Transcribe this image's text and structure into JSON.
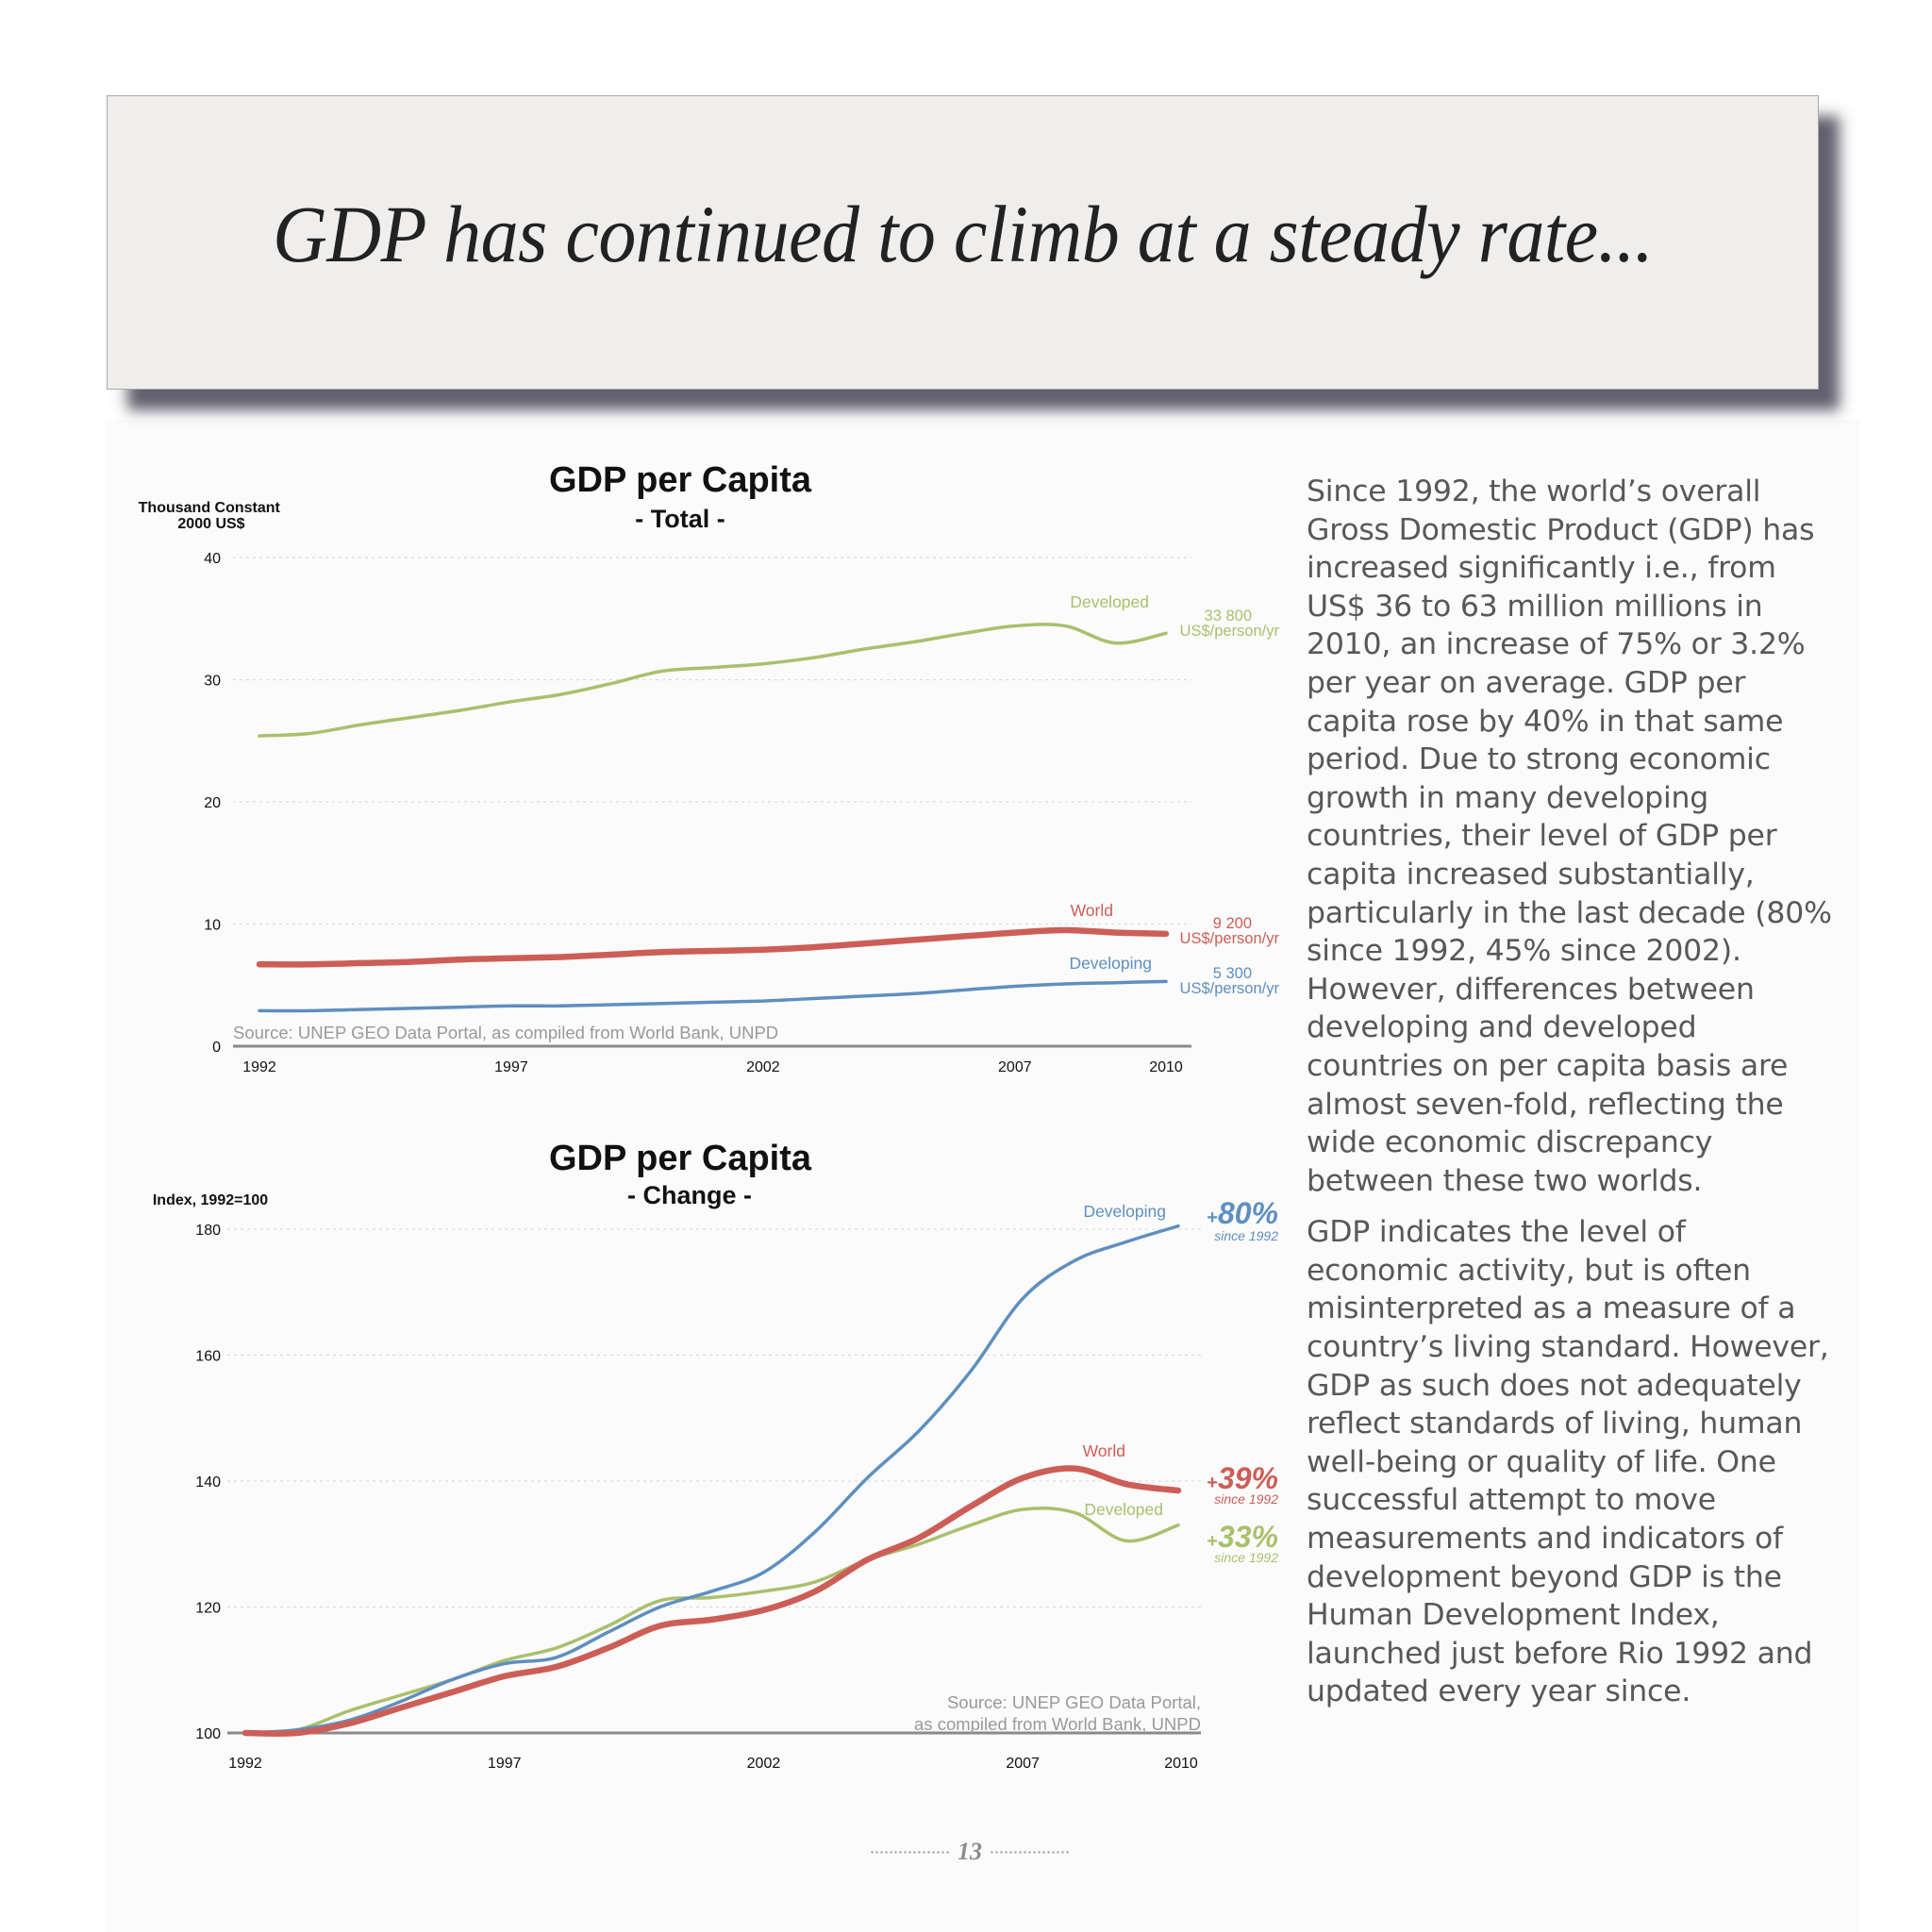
{
  "page_title": "GDP has continued to climb at a steady rate...",
  "page_number": "13",
  "body_paragraphs": [
    "Since 1992, the world’s overall Gross Domestic Product (GDP) has increased signiﬁcantly i.e., from US$ 36 to 63 million millions in 2010, an increase of 75% or 3.2% per year on average. GDP per capita rose by 40% in that same period. Due to strong economic growth in many developing countries, their level of GDP per capita increased substantially, particularly in the last decade (80% since 1992, 45% since 2002). However, differences between developing and developed countries on per capita basis are almost seven-fold, reﬂecting the wide economic discrepancy between these two worlds.",
    "GDP indicates the level of economic activity, but is often misinterpreted as a measure of a country’s living standard. However, GDP as such does not adequately reﬂect standards of living, human well-being or quality of life. One successful attempt to move measurements and indicators of development beyond GDP is the Human Development Index, launched just before Rio 1992 and updated every year since."
  ],
  "colors": {
    "developed": "#a9c06c",
    "world": "#cc5e57",
    "developing": "#5e8fbf",
    "axis": "#8a8a8a",
    "grid": "#dcdcdc",
    "source": "#999999"
  },
  "chart_data": [
    {
      "type": "line",
      "title": "GDP per Capita",
      "subtitle": "- Total -",
      "ylabel": "Thousand Constant 2000 US$",
      "ylim": [
        0,
        40
      ],
      "yticks": [
        0,
        10,
        20,
        30,
        40
      ],
      "xlim": [
        1992,
        2010
      ],
      "xticks": [
        1992,
        1997,
        2002,
        2007,
        2010
      ],
      "grid": true,
      "source": "Source: UNEP GEO Data Portal, as compiled from World Bank, UNPD",
      "x": [
        1992,
        1993,
        1994,
        1995,
        1996,
        1997,
        1998,
        1999,
        2000,
        2001,
        2002,
        2003,
        2004,
        2005,
        2006,
        2007,
        2008,
        2009,
        2010
      ],
      "series": [
        {
          "name": "Developed",
          "color": "#a9c06c",
          "values": [
            25.4,
            25.6,
            26.3,
            26.9,
            27.5,
            28.2,
            28.8,
            29.7,
            30.7,
            31.0,
            31.3,
            31.8,
            32.5,
            33.1,
            33.8,
            34.4,
            34.4,
            33.0,
            33.8
          ],
          "end_value": "33 800",
          "end_unit": "US$/person/yr"
        },
        {
          "name": "World",
          "color": "#cc5e57",
          "values": [
            6.7,
            6.7,
            6.8,
            6.9,
            7.1,
            7.2,
            7.3,
            7.5,
            7.7,
            7.8,
            7.9,
            8.1,
            8.4,
            8.7,
            9.0,
            9.3,
            9.5,
            9.3,
            9.2
          ],
          "end_value": "9 200",
          "end_unit": "US$/person/yr"
        },
        {
          "name": "Developing",
          "color": "#5e8fbf",
          "values": [
            2.9,
            2.9,
            3.0,
            3.1,
            3.2,
            3.3,
            3.3,
            3.4,
            3.5,
            3.6,
            3.7,
            3.9,
            4.1,
            4.3,
            4.6,
            4.9,
            5.1,
            5.2,
            5.3
          ],
          "end_value": "5 300",
          "end_unit": "US$/person/yr"
        }
      ]
    },
    {
      "type": "line",
      "title": "GDP per Capita",
      "subtitle": "- Change -",
      "ylabel": "Index, 1992=100",
      "ylim": [
        100,
        180
      ],
      "yticks": [
        100,
        120,
        140,
        160,
        180
      ],
      "xlim": [
        1992,
        2010
      ],
      "xticks": [
        1992,
        1997,
        2002,
        2007,
        2010
      ],
      "grid": true,
      "source_lines": [
        "Source: UNEP GEO Data Portal,",
        "as compiled from World Bank, UNPD"
      ],
      "x": [
        1992,
        1993,
        1994,
        1995,
        1996,
        1997,
        1998,
        1999,
        2000,
        2001,
        2002,
        2003,
        2004,
        2005,
        2006,
        2007,
        2008,
        2009,
        2010
      ],
      "series": [
        {
          "name": "Developing",
          "color": "#5e8fbf",
          "values": [
            100,
            100.5,
            102,
            105,
            108.5,
            111,
            112,
            116,
            120,
            122.5,
            125.5,
            132,
            140.5,
            148,
            157.5,
            169,
            175,
            178,
            180.5
          ],
          "change": "80%",
          "since": "since 1992"
        },
        {
          "name": "World",
          "color": "#cc5e57",
          "values": [
            100,
            100,
            101.5,
            104,
            106.5,
            109,
            110.5,
            113.5,
            117,
            118,
            119.5,
            122.5,
            127.5,
            131,
            136,
            140.5,
            142,
            139.5,
            138.5
          ],
          "change": "39%",
          "since": "since 1992"
        },
        {
          "name": "Developed",
          "color": "#a9c06c",
          "values": [
            100,
            100.5,
            103.5,
            106,
            108.5,
            111.5,
            113.5,
            117,
            121,
            121.5,
            122.5,
            124,
            127.5,
            130,
            133,
            135.5,
            135,
            130.5,
            133
          ],
          "change": "33%",
          "since": "since 1992"
        }
      ]
    }
  ]
}
